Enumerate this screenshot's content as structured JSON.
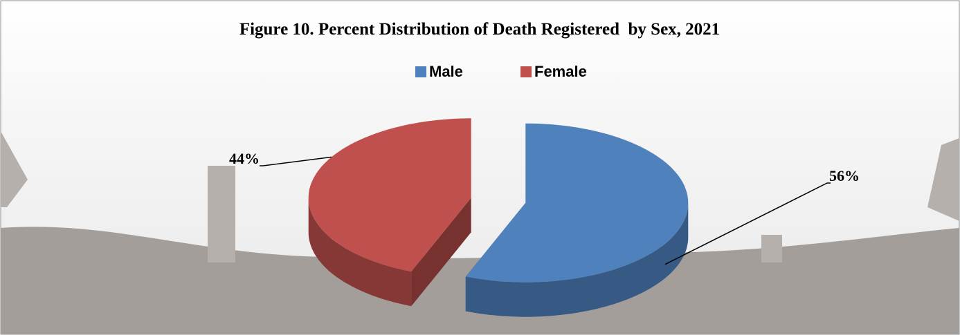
{
  "chart_data": {
    "type": "pie",
    "title": "Figure 10. Percent Distribution of Death Registered  by Sex, 2021",
    "categories": [
      "Male",
      "Female"
    ],
    "values": [
      56,
      44
    ],
    "value_labels": [
      "56%",
      "44%"
    ],
    "colors": [
      "#4f81bd",
      "#c0504d"
    ],
    "legend": "top",
    "exploded": true,
    "three_d": true
  }
}
